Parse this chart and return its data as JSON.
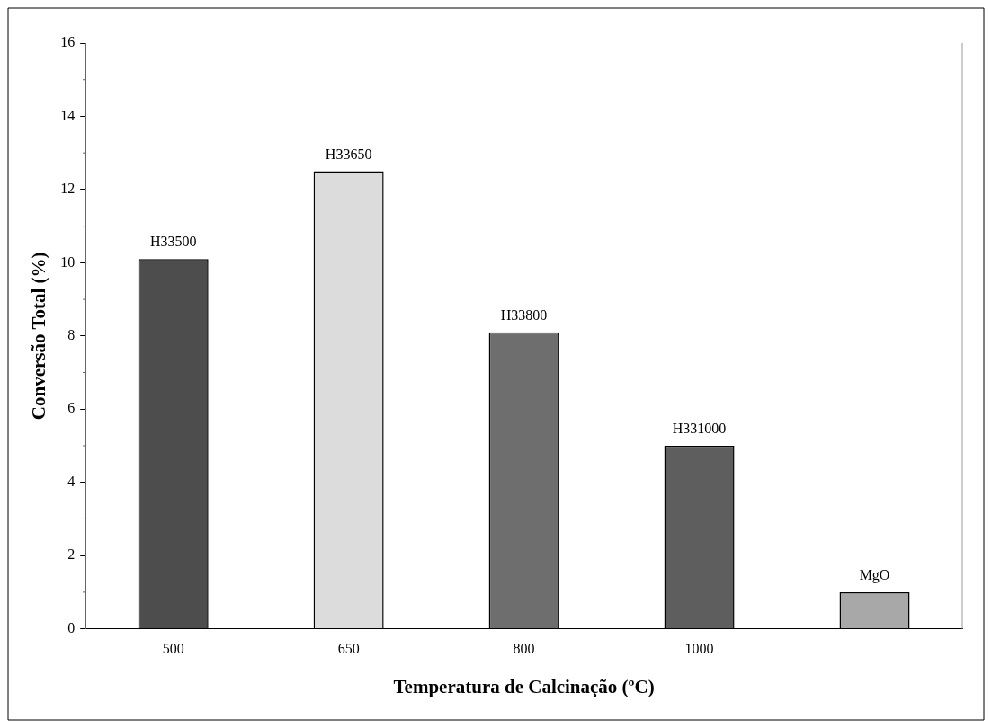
{
  "chart_data": {
    "type": "bar",
    "xlabel": "Temperatura de Calcinação (ºC)",
    "ylabel": "Conversão Total (%)",
    "categories": [
      "500",
      "650",
      "800",
      "1000",
      null
    ],
    "values": [
      10.1,
      12.5,
      8.1,
      5.0,
      1.0
    ],
    "colors": [
      "#4d4d4d",
      "#dcdcdc",
      "#6e6e6e",
      "#5e5e5e",
      "#a8a8a8"
    ],
    "ylim": [
      0,
      16
    ],
    "yticks": [
      0,
      2,
      4,
      6,
      8,
      10,
      12,
      14,
      16
    ],
    "grid": false,
    "legend": false,
    "annotations": [
      {
        "text": "H33500",
        "x": "500",
        "y": 10.1
      },
      {
        "text": "H33650",
        "x": "650",
        "y": 12.5
      },
      {
        "text": "H33800",
        "x": "800",
        "y": 8.1
      },
      {
        "text": "H331000",
        "x": "1000",
        "y": 5.0
      },
      {
        "text": "MgO",
        "y": 1.0
      }
    ]
  }
}
